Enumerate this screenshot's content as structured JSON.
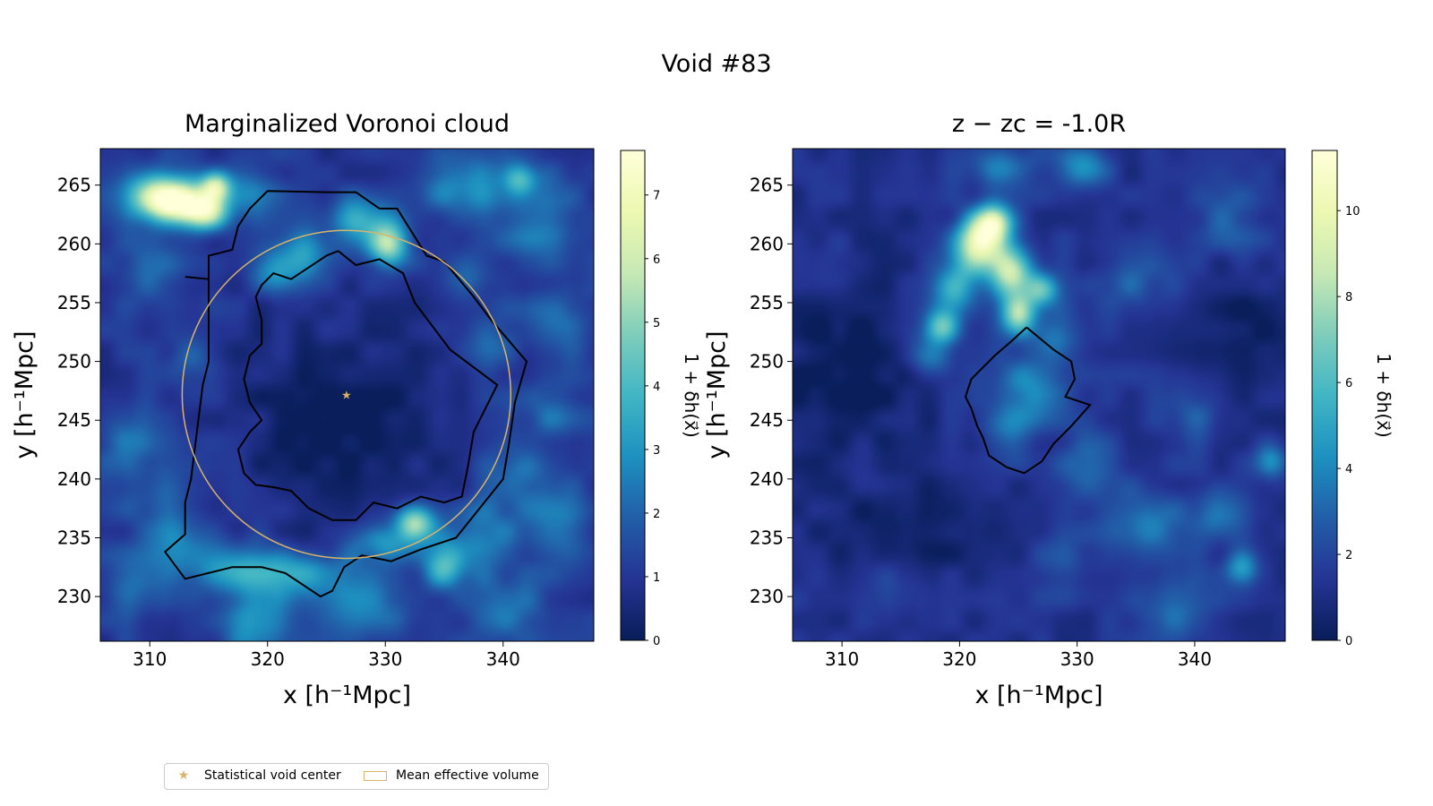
{
  "figure_title": "Void #83",
  "colormap": [
    "#081d58",
    "#253494",
    "#225ea8",
    "#1d91c0",
    "#41b6c4",
    "#7fcdbb",
    "#c7e9b4",
    "#edf8b1",
    "#ffffd9"
  ],
  "accent_color": "#d9b36a",
  "contour_color": "#000000",
  "legend": {
    "star_label": "Statistical void center",
    "circle_label": "Mean effective volume"
  },
  "chart_data": [
    {
      "type": "heatmap",
      "title": "Marginalized Voronoi cloud",
      "xlabel": "x [h⁻¹Mpc]",
      "ylabel": "y [h⁻¹Mpc]",
      "xlim": [
        305.8,
        347.7
      ],
      "ylim": [
        226.2,
        268.1
      ],
      "xticks": [
        310,
        320,
        330,
        340
      ],
      "yticks": [
        230,
        235,
        240,
        245,
        250,
        255,
        260,
        265
      ],
      "colorbar": {
        "label": "1 + δh(x⃗)",
        "min": 0,
        "max": 7.7,
        "ticks": [
          0,
          1,
          2,
          3,
          4,
          5,
          6,
          7
        ]
      },
      "background_level": 1.0,
      "blobs": [
        {
          "x": 312.8,
          "y": 263.5,
          "sx": 2.0,
          "sy": 1.2,
          "v": 6.0
        },
        {
          "x": 310.5,
          "y": 264.2,
          "sx": 2.0,
          "sy": 1.5,
          "v": 4.0
        },
        {
          "x": 315.6,
          "y": 265.0,
          "sx": 0.9,
          "sy": 0.9,
          "v": 4.2
        },
        {
          "x": 315.0,
          "y": 262.5,
          "sx": 1.2,
          "sy": 1.0,
          "v": 3.5
        },
        {
          "x": 318.5,
          "y": 264.5,
          "sx": 1.6,
          "sy": 1.6,
          "v": 1.6
        },
        {
          "x": 330.2,
          "y": 260.0,
          "sx": 1.2,
          "sy": 1.2,
          "v": 4.5
        },
        {
          "x": 328.0,
          "y": 262.0,
          "sx": 1.8,
          "sy": 1.5,
          "v": 2.5
        },
        {
          "x": 323.0,
          "y": 259.0,
          "sx": 2.0,
          "sy": 1.5,
          "v": 2.0
        },
        {
          "x": 320.5,
          "y": 257.5,
          "sx": 1.4,
          "sy": 1.2,
          "v": 1.6
        },
        {
          "x": 310.0,
          "y": 258.0,
          "sx": 2.0,
          "sy": 2.0,
          "v": 1.0
        },
        {
          "x": 336.5,
          "y": 265.0,
          "sx": 2.5,
          "sy": 2.0,
          "v": 2.0
        },
        {
          "x": 341.5,
          "y": 265.5,
          "sx": 1.0,
          "sy": 1.0,
          "v": 2.6
        },
        {
          "x": 343.0,
          "y": 262.0,
          "sx": 2.5,
          "sy": 2.5,
          "v": 1.6
        },
        {
          "x": 337.0,
          "y": 257.5,
          "sx": 1.5,
          "sy": 1.5,
          "v": 1.3
        },
        {
          "x": 344.5,
          "y": 253.5,
          "sx": 2.0,
          "sy": 2.0,
          "v": 1.5
        },
        {
          "x": 339.0,
          "y": 251.5,
          "sx": 1.5,
          "sy": 1.5,
          "v": 1.0
        },
        {
          "x": 344.0,
          "y": 246.0,
          "sx": 2.0,
          "sy": 2.0,
          "v": 1.2
        },
        {
          "x": 341.0,
          "y": 240.0,
          "sx": 2.0,
          "sy": 2.0,
          "v": 1.4
        },
        {
          "x": 344.5,
          "y": 236.0,
          "sx": 2.0,
          "sy": 2.5,
          "v": 1.6
        },
        {
          "x": 332.5,
          "y": 236.3,
          "sx": 1.2,
          "sy": 1.0,
          "v": 4.0
        },
        {
          "x": 335.0,
          "y": 232.8,
          "sx": 1.3,
          "sy": 1.4,
          "v": 3.0
        },
        {
          "x": 330.0,
          "y": 234.5,
          "sx": 2.0,
          "sy": 1.2,
          "v": 2.4
        },
        {
          "x": 338.0,
          "y": 235.0,
          "sx": 2.0,
          "sy": 2.0,
          "v": 1.8
        },
        {
          "x": 322.5,
          "y": 232.0,
          "sx": 3.0,
          "sy": 1.2,
          "v": 2.4
        },
        {
          "x": 317.0,
          "y": 232.5,
          "sx": 2.5,
          "sy": 1.5,
          "v": 2.0
        },
        {
          "x": 312.5,
          "y": 234.5,
          "sx": 2.0,
          "sy": 1.8,
          "v": 1.5
        },
        {
          "x": 319.0,
          "y": 228.0,
          "sx": 1.8,
          "sy": 2.5,
          "v": 2.2
        },
        {
          "x": 328.0,
          "y": 229.5,
          "sx": 3.0,
          "sy": 2.0,
          "v": 1.6
        },
        {
          "x": 340.0,
          "y": 229.0,
          "sx": 2.5,
          "sy": 2.0,
          "v": 1.3
        },
        {
          "x": 309.0,
          "y": 231.0,
          "sx": 2.0,
          "sy": 2.0,
          "v": 1.3
        },
        {
          "x": 308.0,
          "y": 243.5,
          "sx": 1.8,
          "sy": 2.0,
          "v": 1.3
        },
        {
          "x": 313.5,
          "y": 250.0,
          "sx": 1.5,
          "sy": 1.5,
          "v": 1.0
        },
        {
          "x": 310.5,
          "y": 238.5,
          "sx": 2.0,
          "sy": 2.0,
          "v": 1.0
        }
      ],
      "voids": [
        {
          "x": 326.5,
          "y": 244.5,
          "sx": 6.5,
          "sy": 6.5,
          "v": -0.9
        }
      ],
      "contours": [
        [
          [
            313.0,
            257.2
          ],
          [
            315.0,
            257.0
          ],
          [
            315.0,
            259.0
          ],
          [
            317.0,
            259.5
          ],
          [
            317.5,
            261.5
          ],
          [
            318.5,
            263.0
          ],
          [
            320.0,
            264.5
          ],
          [
            325.0,
            264.4
          ],
          [
            327.5,
            264.4
          ],
          [
            329.5,
            263.0
          ],
          [
            331.0,
            263.0
          ],
          [
            333.5,
            259.0
          ],
          [
            335.0,
            258.5
          ],
          [
            337.5,
            255.5
          ],
          [
            339.0,
            253.5
          ],
          [
            342.0,
            250.0
          ],
          [
            341.0,
            246.5
          ],
          [
            340.5,
            243.0
          ],
          [
            340.0,
            240.0
          ],
          [
            338.0,
            237.5
          ],
          [
            336.0,
            235.0
          ],
          [
            333.0,
            234.0
          ],
          [
            330.5,
            233.0
          ],
          [
            328.0,
            233.5
          ],
          [
            326.5,
            232.5
          ],
          [
            325.5,
            230.5
          ],
          [
            324.5,
            230.0
          ],
          [
            321.5,
            232.0
          ],
          [
            319.5,
            232.5
          ],
          [
            317.0,
            232.5
          ],
          [
            313.0,
            231.5
          ],
          [
            311.3,
            233.8
          ],
          [
            313.0,
            235.3
          ],
          [
            313.0,
            238.0
          ],
          [
            313.5,
            240.0
          ],
          [
            314.0,
            244.0
          ],
          [
            314.5,
            248.0
          ],
          [
            315.0,
            250.0
          ],
          [
            315.0,
            257.0
          ]
        ],
        [
          [
            326.0,
            259.4
          ],
          [
            327.5,
            258.2
          ],
          [
            329.5,
            258.7
          ],
          [
            331.5,
            257.5
          ],
          [
            332.5,
            255.0
          ],
          [
            334.0,
            253.0
          ],
          [
            335.5,
            251.0
          ],
          [
            337.5,
            249.5
          ],
          [
            339.5,
            248.0
          ],
          [
            338.5,
            246.0
          ],
          [
            337.5,
            244.0
          ],
          [
            337.0,
            241.0
          ],
          [
            336.5,
            238.5
          ],
          [
            335.0,
            238.0
          ],
          [
            333.0,
            238.5
          ],
          [
            331.0,
            237.5
          ],
          [
            329.0,
            238.0
          ],
          [
            328.5,
            237.5
          ],
          [
            327.5,
            236.5
          ],
          [
            325.5,
            236.5
          ],
          [
            323.5,
            237.5
          ],
          [
            322.0,
            239.0
          ],
          [
            320.5,
            239.3
          ],
          [
            319.0,
            239.5
          ],
          [
            318.0,
            240.5
          ],
          [
            317.5,
            242.5
          ],
          [
            318.5,
            244.0
          ],
          [
            319.5,
            245.0
          ],
          [
            318.5,
            246.5
          ],
          [
            318.0,
            248.5
          ],
          [
            318.5,
            250.5
          ],
          [
            319.5,
            251.5
          ],
          [
            319.5,
            253.5
          ],
          [
            319.0,
            255.5
          ],
          [
            319.5,
            256.5
          ],
          [
            320.5,
            257.5
          ],
          [
            322.0,
            257.0
          ],
          [
            323.5,
            258.0
          ],
          [
            325.0,
            259.0
          ],
          [
            326.0,
            259.4
          ]
        ]
      ],
      "circle": {
        "cx": 326.7,
        "cy": 247.2,
        "r": 13.95
      },
      "star": {
        "x": 326.7,
        "y": 247.2
      }
    },
    {
      "type": "heatmap",
      "title": "z − zc = -1.0R",
      "xlabel": "x [h⁻¹Mpc]",
      "ylabel": "y [h⁻¹Mpc]",
      "xlim": [
        305.8,
        347.7
      ],
      "ylim": [
        226.2,
        268.1
      ],
      "xticks": [
        310,
        320,
        330,
        340
      ],
      "yticks": [
        230,
        235,
        240,
        245,
        250,
        255,
        260,
        265
      ],
      "colorbar": {
        "label": "1 + δh(x⃗)",
        "min": 0,
        "max": 11.4,
        "ticks": [
          0,
          2,
          4,
          6,
          8,
          10
        ]
      },
      "background_level": 1.3,
      "blobs": [
        {
          "x": 322.0,
          "y": 260.5,
          "sx": 1.5,
          "sy": 1.5,
          "v": 8.0
        },
        {
          "x": 323.0,
          "y": 262.0,
          "sx": 1.0,
          "sy": 1.0,
          "v": 6.0
        },
        {
          "x": 324.5,
          "y": 257.5,
          "sx": 1.2,
          "sy": 1.5,
          "v": 7.5
        },
        {
          "x": 325.0,
          "y": 254.0,
          "sx": 1.0,
          "sy": 1.2,
          "v": 6.5
        },
        {
          "x": 327.0,
          "y": 256.0,
          "sx": 1.0,
          "sy": 1.0,
          "v": 4.5
        },
        {
          "x": 319.5,
          "y": 256.0,
          "sx": 1.3,
          "sy": 1.3,
          "v": 3.5
        },
        {
          "x": 318.5,
          "y": 253.0,
          "sx": 1.0,
          "sy": 1.0,
          "v": 5.0
        },
        {
          "x": 317.5,
          "y": 250.5,
          "sx": 1.2,
          "sy": 1.2,
          "v": 3.0
        },
        {
          "x": 321.0,
          "y": 258.5,
          "sx": 1.5,
          "sy": 1.5,
          "v": 3.0
        },
        {
          "x": 328.0,
          "y": 252.0,
          "sx": 1.5,
          "sy": 1.5,
          "v": 2.5
        },
        {
          "x": 326.0,
          "y": 247.5,
          "sx": 2.0,
          "sy": 2.0,
          "v": 3.0
        },
        {
          "x": 324.0,
          "y": 244.0,
          "sx": 1.5,
          "sy": 1.5,
          "v": 2.0
        },
        {
          "x": 323.5,
          "y": 266.5,
          "sx": 2.0,
          "sy": 1.2,
          "v": 2.5
        },
        {
          "x": 330.5,
          "y": 266.5,
          "sx": 1.5,
          "sy": 1.2,
          "v": 3.0
        },
        {
          "x": 336.0,
          "y": 236.0,
          "sx": 2.5,
          "sy": 2.0,
          "v": 2.5
        },
        {
          "x": 342.0,
          "y": 237.0,
          "sx": 1.5,
          "sy": 1.5,
          "v": 2.5
        },
        {
          "x": 346.5,
          "y": 241.5,
          "sx": 1.0,
          "sy": 1.0,
          "v": 3.0
        },
        {
          "x": 344.0,
          "y": 232.5,
          "sx": 1.0,
          "sy": 1.0,
          "v": 3.0
        },
        {
          "x": 331.0,
          "y": 241.0,
          "sx": 2.0,
          "sy": 2.0,
          "v": 2.0
        },
        {
          "x": 340.0,
          "y": 246.0,
          "sx": 2.0,
          "sy": 2.0,
          "v": 1.5
        },
        {
          "x": 335.0,
          "y": 257.0,
          "sx": 2.5,
          "sy": 2.0,
          "v": 1.5
        },
        {
          "x": 343.0,
          "y": 262.0,
          "sx": 2.0,
          "sy": 2.0,
          "v": 1.5
        },
        {
          "x": 338.0,
          "y": 229.0,
          "sx": 2.5,
          "sy": 2.0,
          "v": 1.8
        },
        {
          "x": 329.0,
          "y": 233.0,
          "sx": 2.0,
          "sy": 2.0,
          "v": 1.2
        },
        {
          "x": 312.0,
          "y": 241.0,
          "sx": 2.0,
          "sy": 2.0,
          "v": 1.0
        },
        {
          "x": 309.0,
          "y": 258.0,
          "sx": 2.0,
          "sy": 2.0,
          "v": 1.0
        },
        {
          "x": 315.0,
          "y": 231.0,
          "sx": 2.0,
          "sy": 2.0,
          "v": 1.0
        }
      ],
      "voids": [
        {
          "x": 310.0,
          "y": 249.0,
          "sx": 4.0,
          "sy": 7.0,
          "v": -1.0
        },
        {
          "x": 316.0,
          "y": 236.0,
          "sx": 4.0,
          "sy": 4.0,
          "v": -0.8
        },
        {
          "x": 344.0,
          "y": 252.0,
          "sx": 3.5,
          "sy": 4.0,
          "v": -0.8
        }
      ],
      "contours": [
        [
          [
            325.7,
            252.9
          ],
          [
            328.0,
            251.0
          ],
          [
            329.5,
            250.0
          ],
          [
            329.8,
            248.5
          ],
          [
            329.0,
            247.0
          ],
          [
            331.1,
            246.3
          ],
          [
            329.5,
            244.5
          ],
          [
            328.0,
            243.0
          ],
          [
            327.0,
            241.5
          ],
          [
            325.5,
            240.5
          ],
          [
            324.0,
            241.0
          ],
          [
            322.5,
            242.0
          ],
          [
            322.0,
            243.5
          ],
          [
            321.5,
            244.5
          ],
          [
            321.0,
            246.0
          ],
          [
            320.5,
            247.0
          ],
          [
            321.0,
            248.5
          ],
          [
            322.0,
            249.5
          ],
          [
            323.0,
            250.5
          ],
          [
            324.5,
            251.8
          ],
          [
            325.7,
            252.9
          ]
        ]
      ]
    }
  ]
}
